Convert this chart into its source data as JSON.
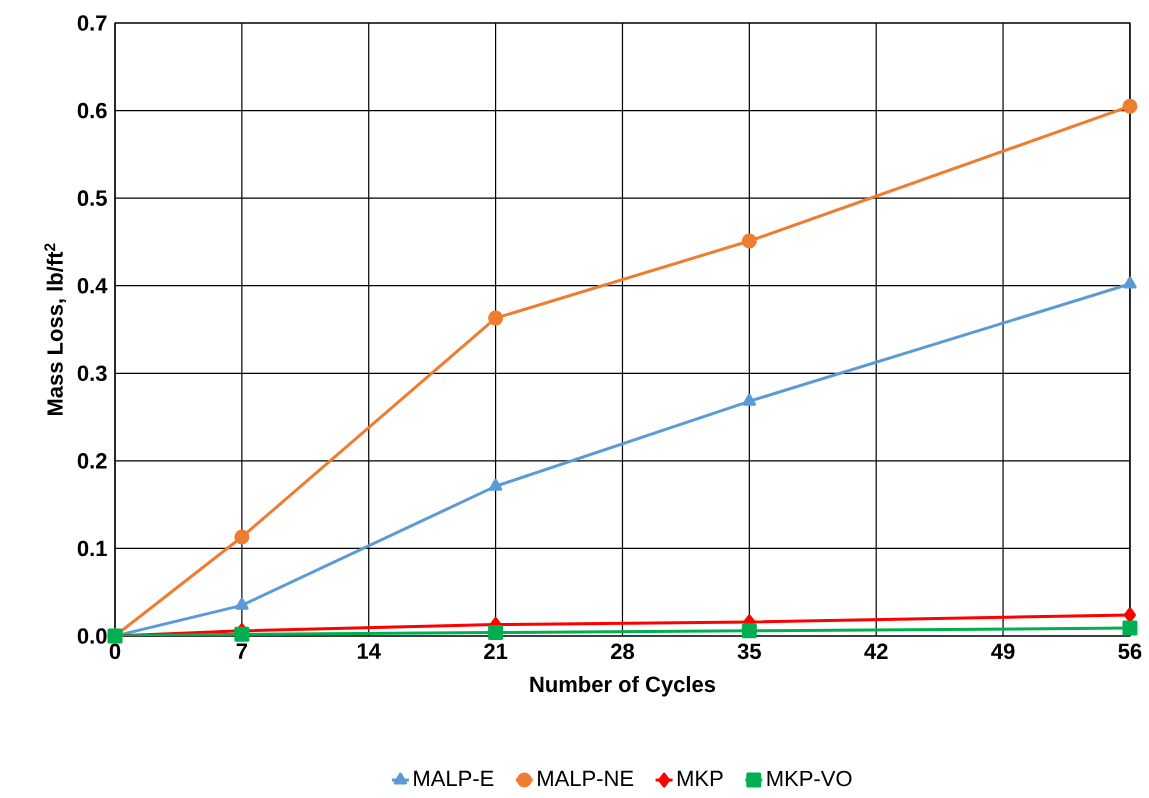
{
  "chart_data": {
    "type": "line",
    "xlabel": "Number of Cycles",
    "ylabel": "Mass Loss, lb/ft$^{2}$",
    "x": [
      0,
      7,
      21,
      35,
      56
    ],
    "series": [
      {
        "name": "MALP-E",
        "color": "#5b9bd5",
        "marker": "triangle",
        "values": [
          0,
          0.035,
          0.171,
          0.268,
          0.402
        ]
      },
      {
        "name": "MALP-NE",
        "color": "#ed7d31",
        "marker": "circle",
        "values": [
          0,
          0.113,
          0.363,
          0.451,
          0.605
        ]
      },
      {
        "name": "MKP",
        "color": "#ff0000",
        "marker": "diamond",
        "values": [
          0,
          0.006,
          0.013,
          0.016,
          0.024
        ]
      },
      {
        "name": "MKP-VO",
        "color": "#00b050",
        "marker": "square",
        "values": [
          0,
          0.002,
          0.004,
          0.006,
          0.009
        ]
      }
    ],
    "xlim": [
      0,
      56
    ],
    "xticks": [
      0,
      7,
      14,
      21,
      28,
      35,
      42,
      49,
      56
    ],
    "ylim": [
      0,
      0.7
    ],
    "yticks": [
      {
        "value": 0,
        "label": "0.0"
      },
      0.1,
      0.2,
      0.3,
      0.4,
      0.5,
      0.6,
      0.7
    ],
    "grid": true,
    "legend": "bottom",
    "line_style": "solid"
  }
}
